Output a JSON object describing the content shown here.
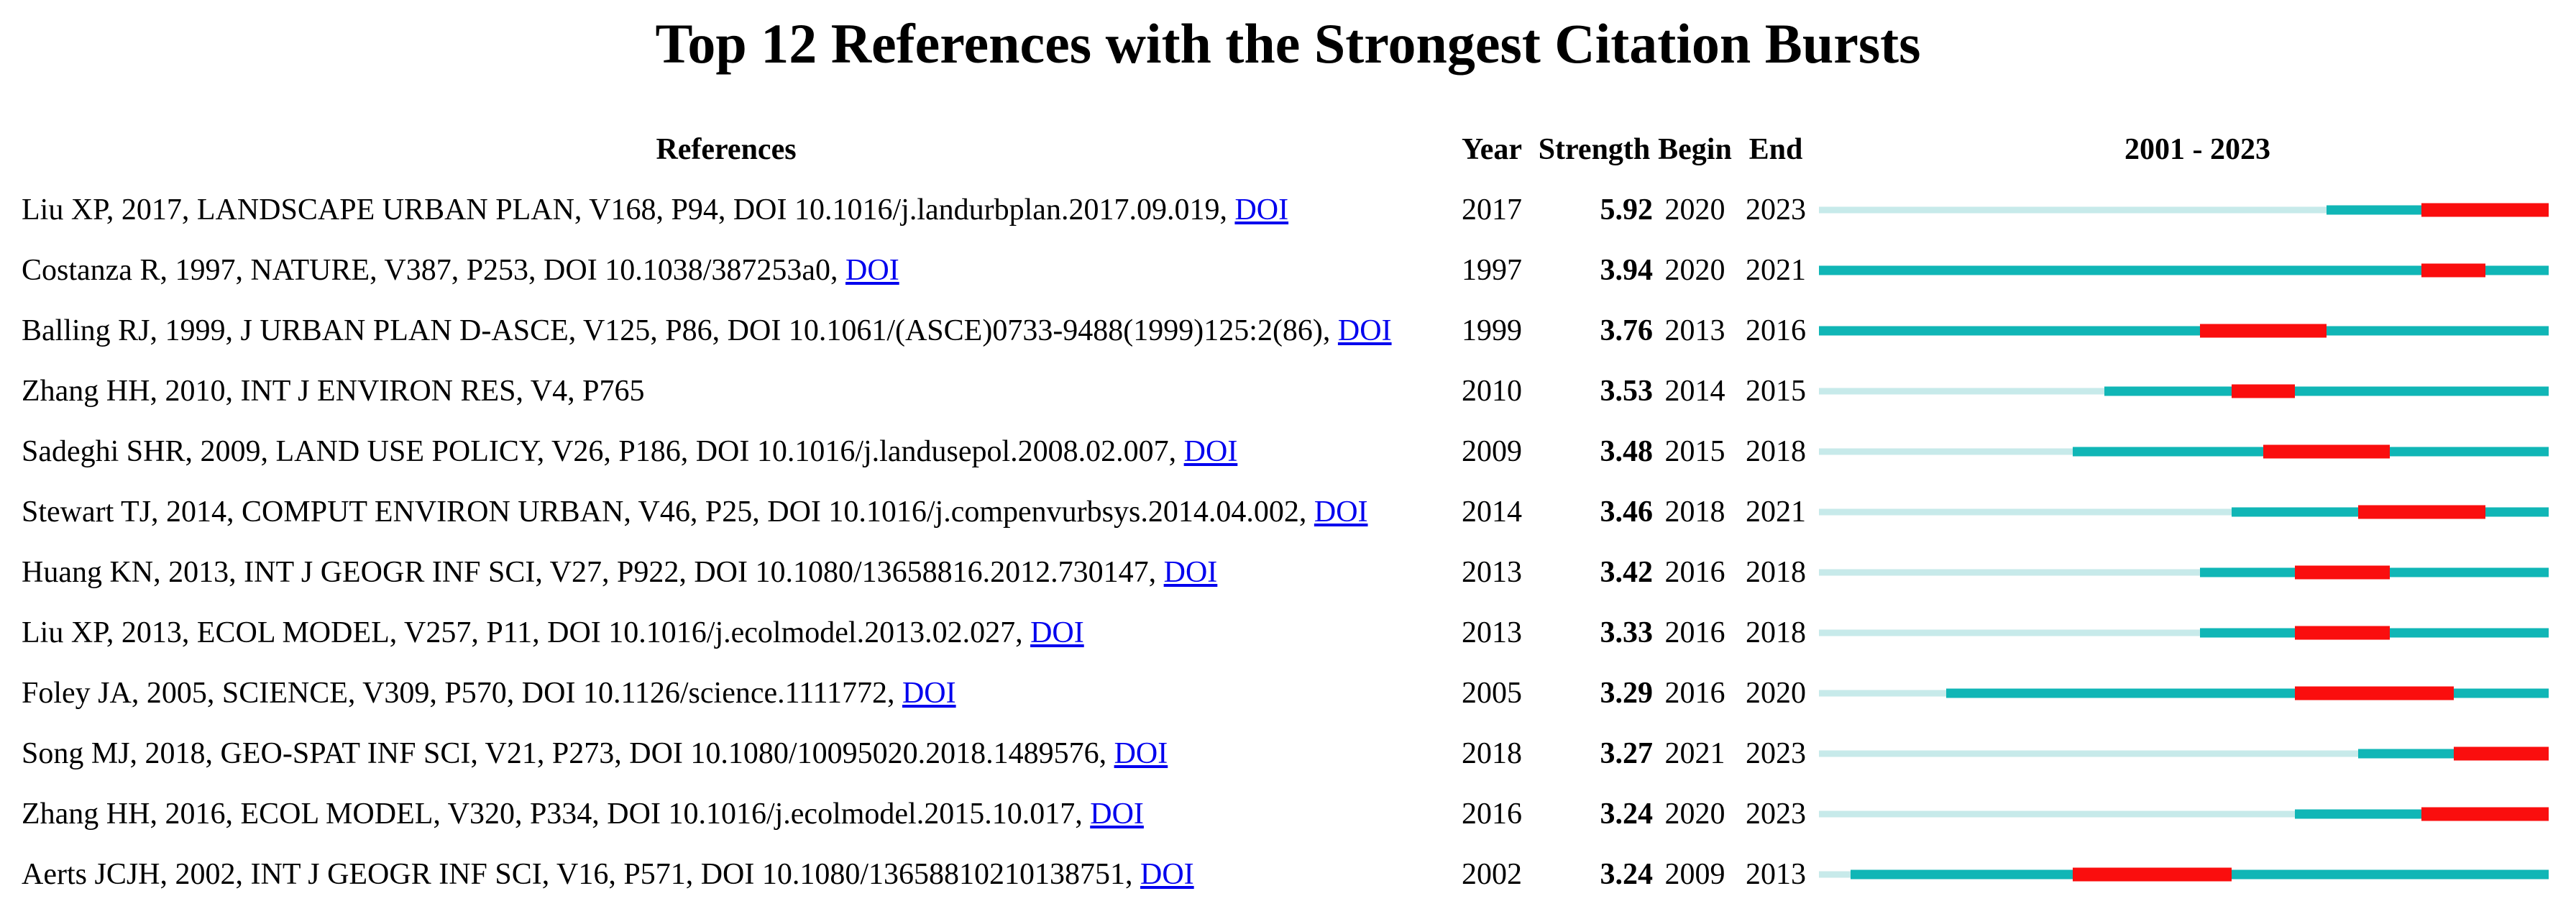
{
  "title": "Top 12 References with the Strongest Citation Bursts",
  "doi_link_label": "DOI",
  "colors": {
    "pre_publication_bar": "#c7eaea",
    "published_bar": "#10b6b6",
    "burst_bar": "#fa0e0e",
    "doi_link": "#0000ee",
    "text": "#000000",
    "background": "#ffffff"
  },
  "chart_data": {
    "type": "table",
    "title": "Top 12 References with the Strongest Citation Bursts",
    "columns": [
      "References",
      "Year",
      "Strength",
      "Begin",
      "End"
    ],
    "timeline_label": "2001 - 2023",
    "timeline_range": [
      2001,
      2023
    ],
    "bar_encoding": {
      "pale": "years before publication",
      "teal": "published years outside burst",
      "red": "citation burst interval (Begin..End)"
    },
    "rows": [
      {
        "reference": "Liu XP, 2017, LANDSCAPE URBAN PLAN, V168, P94, DOI 10.1016/j.landurbplan.2017.09.019,",
        "doi_link": true,
        "year": 2017,
        "strength": "5.92",
        "begin": 2020,
        "end": 2023
      },
      {
        "reference": "Costanza R, 1997, NATURE, V387, P253, DOI 10.1038/387253a0,",
        "doi_link": true,
        "year": 1997,
        "strength": "3.94",
        "begin": 2020,
        "end": 2021
      },
      {
        "reference": "Balling RJ, 1999, J URBAN PLAN D-ASCE, V125, P86, DOI 10.1061/(ASCE)0733-9488(1999)125:2(86),",
        "doi_link": true,
        "year": 1999,
        "strength": "3.76",
        "begin": 2013,
        "end": 2016
      },
      {
        "reference": "Zhang HH, 2010, INT J ENVIRON RES, V4, P765",
        "doi_link": false,
        "year": 2010,
        "strength": "3.53",
        "begin": 2014,
        "end": 2015
      },
      {
        "reference": "Sadeghi SHR, 2009, LAND USE POLICY, V26, P186, DOI 10.1016/j.landusepol.2008.02.007,",
        "doi_link": true,
        "year": 2009,
        "strength": "3.48",
        "begin": 2015,
        "end": 2018
      },
      {
        "reference": "Stewart TJ, 2014, COMPUT ENVIRON URBAN, V46, P25, DOI 10.1016/j.compenvurbsys.2014.04.002,",
        "doi_link": true,
        "year": 2014,
        "strength": "3.46",
        "begin": 2018,
        "end": 2021
      },
      {
        "reference": "Huang KN, 2013, INT J GEOGR INF SCI, V27, P922, DOI 10.1080/13658816.2012.730147,",
        "doi_link": true,
        "year": 2013,
        "strength": "3.42",
        "begin": 2016,
        "end": 2018
      },
      {
        "reference": "Liu XP, 2013, ECOL MODEL, V257, P11, DOI 10.1016/j.ecolmodel.2013.02.027,",
        "doi_link": true,
        "year": 2013,
        "strength": "3.33",
        "begin": 2016,
        "end": 2018
      },
      {
        "reference": "Foley JA, 2005, SCIENCE, V309, P570, DOI 10.1126/science.1111772,",
        "doi_link": true,
        "year": 2005,
        "strength": "3.29",
        "begin": 2016,
        "end": 2020
      },
      {
        "reference": "Song MJ, 2018, GEO-SPAT INF SCI, V21, P273, DOI 10.1080/10095020.2018.1489576,",
        "doi_link": true,
        "year": 2018,
        "strength": "3.27",
        "begin": 2021,
        "end": 2023
      },
      {
        "reference": "Zhang HH, 2016, ECOL MODEL, V320, P334, DOI 10.1016/j.ecolmodel.2015.10.017,",
        "doi_link": true,
        "year": 2016,
        "strength": "3.24",
        "begin": 2020,
        "end": 2023
      },
      {
        "reference": "Aerts JCJH, 2002, INT J GEOGR INF SCI, V16, P571, DOI 10.1080/13658810210138751,",
        "doi_link": true,
        "year": 2002,
        "strength": "3.24",
        "begin": 2009,
        "end": 2013
      }
    ]
  }
}
